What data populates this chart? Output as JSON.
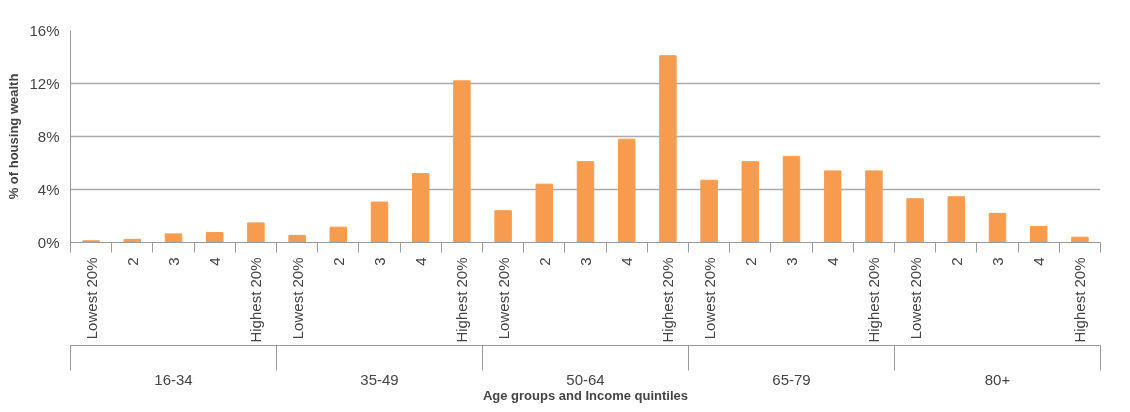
{
  "chart_data": {
    "type": "bar",
    "xlabel": "Age groups and Income quintiles",
    "ylabel": "% of housing wealth",
    "categories": [
      "Lowest 20%",
      "2",
      "3",
      "4",
      "Highest 20%",
      "Lowest 20%",
      "2",
      "3",
      "4",
      "Highest 20%",
      "Lowest 20%",
      "2",
      "3",
      "4",
      "Highest 20%",
      "Lowest 20%",
      "2",
      "3",
      "4",
      "Highest 20%",
      "Lowest 20%",
      "2",
      "3",
      "4",
      "Highest 20%"
    ],
    "values": [
      0.13,
      0.24,
      0.65,
      0.75,
      1.48,
      0.54,
      1.16,
      3.05,
      5.2,
      12.2,
      2.4,
      4.4,
      6.1,
      7.8,
      14.1,
      4.7,
      6.1,
      6.5,
      5.4,
      5.4,
      3.3,
      3.45,
      2.2,
      1.2,
      0.4
    ],
    "color": "#f79c4e",
    "ylim": [
      0,
      16
    ],
    "yticks": [
      {
        "value": 0,
        "label": "0%"
      },
      {
        "value": 4,
        "label": "4%"
      },
      {
        "value": 8,
        "label": "8%"
      },
      {
        "value": 12,
        "label": "12%"
      },
      {
        "value": 16,
        "label": "16%"
      }
    ],
    "grid": "y",
    "annotations": [
      "16-34",
      "35-49",
      "50-64",
      "65-79",
      "80+"
    ]
  }
}
